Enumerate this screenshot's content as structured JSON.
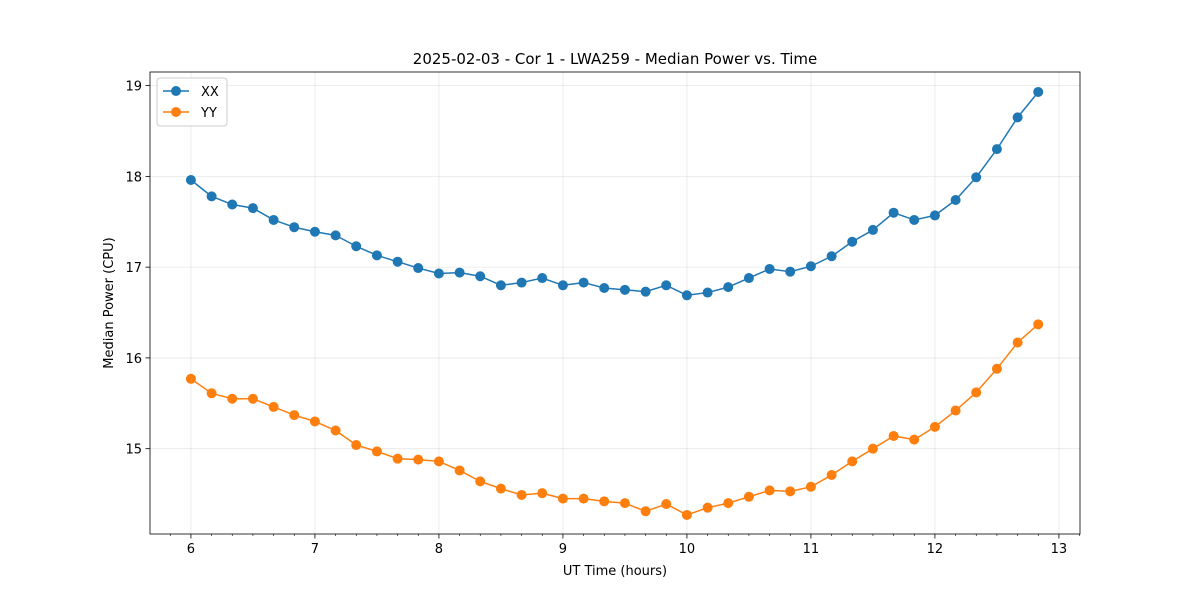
{
  "chart_data": {
    "type": "line",
    "title": "2025-02-03 - Cor 1 - LWA259 - Median Power vs. Time",
    "xlabel": "UT Time (hours)",
    "ylabel": "Median Power (CPU)",
    "xlim": [
      5.67,
      13.17
    ],
    "ylim": [
      14.06,
      19.15
    ],
    "xticks": [
      6,
      7,
      8,
      9,
      10,
      11,
      12,
      13
    ],
    "xtick_labels": [
      "6",
      "7",
      "8",
      "9",
      "10",
      "11",
      "12",
      "13"
    ],
    "yticks": [
      15,
      16,
      17,
      18,
      19
    ],
    "ytick_labels": [
      "15",
      "16",
      "17",
      "18",
      "19"
    ],
    "grid": true,
    "legend_position": "top-left",
    "x": [
      6.0,
      6.167,
      6.333,
      6.5,
      6.667,
      6.833,
      7.0,
      7.167,
      7.333,
      7.5,
      7.667,
      7.833,
      8.0,
      8.167,
      8.333,
      8.5,
      8.667,
      8.833,
      9.0,
      9.167,
      9.333,
      9.5,
      9.667,
      9.833,
      10.0,
      10.167,
      10.333,
      10.5,
      10.667,
      10.833,
      11.0,
      11.167,
      11.333,
      11.5,
      11.667,
      11.833,
      12.0,
      12.167,
      12.333,
      12.5,
      12.667,
      12.833
    ],
    "series": [
      {
        "name": "XX",
        "color": "#1f77b4",
        "values": [
          17.96,
          17.78,
          17.69,
          17.65,
          17.52,
          17.44,
          17.39,
          17.35,
          17.23,
          17.13,
          17.06,
          16.99,
          16.93,
          16.94,
          16.9,
          16.8,
          16.83,
          16.88,
          16.8,
          16.83,
          16.77,
          16.75,
          16.73,
          16.8,
          16.69,
          16.72,
          16.78,
          16.88,
          16.98,
          16.95,
          17.01,
          17.12,
          17.28,
          17.41,
          17.6,
          17.52,
          17.57,
          17.74,
          17.99,
          18.3,
          18.65,
          18.93
        ]
      },
      {
        "name": "YY",
        "color": "#ff7f0e",
        "values": [
          15.77,
          15.61,
          15.55,
          15.55,
          15.46,
          15.37,
          15.3,
          15.2,
          15.04,
          14.97,
          14.89,
          14.88,
          14.86,
          14.76,
          14.64,
          14.56,
          14.49,
          14.51,
          14.45,
          14.45,
          14.42,
          14.4,
          14.31,
          14.39,
          14.27,
          14.35,
          14.4,
          14.47,
          14.54,
          14.53,
          14.58,
          14.71,
          14.86,
          15.0,
          15.14,
          15.1,
          15.24,
          15.42,
          15.62,
          15.88,
          16.17,
          16.37
        ]
      }
    ]
  }
}
